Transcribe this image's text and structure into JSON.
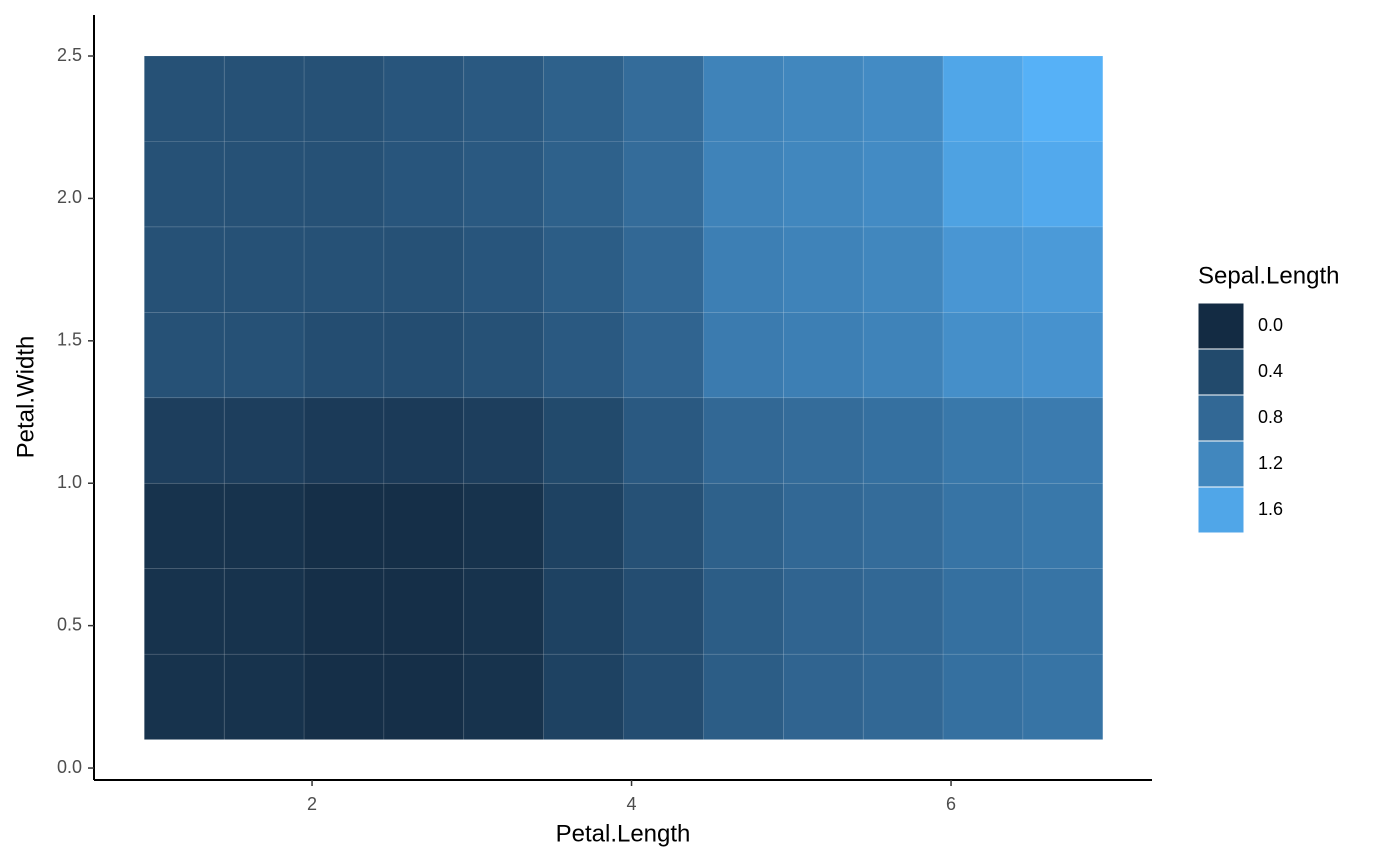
{
  "chart_data": {
    "type": "heatmap",
    "x_label": "Petal.Length",
    "y_label": "Petal.Width",
    "legend_title": "Sepal.Length",
    "x": [
      1.2,
      1.7,
      2.2,
      2.7,
      3.2,
      3.7,
      4.2,
      4.7,
      5.2,
      5.7,
      6.2,
      6.7
    ],
    "y": [
      0.25,
      0.55,
      0.85,
      1.15,
      1.45,
      1.75,
      2.05,
      2.35
    ],
    "z": [
      [
        0.1,
        0.1,
        0.05,
        0.05,
        0.1,
        0.3,
        0.45,
        0.65,
        0.75,
        0.8,
        0.9,
        0.95
      ],
      [
        0.1,
        0.1,
        0.05,
        0.05,
        0.1,
        0.3,
        0.45,
        0.65,
        0.75,
        0.8,
        0.9,
        0.95
      ],
      [
        0.1,
        0.1,
        0.05,
        0.05,
        0.1,
        0.3,
        0.5,
        0.7,
        0.8,
        0.85,
        0.95,
        1.0
      ],
      [
        0.25,
        0.25,
        0.2,
        0.2,
        0.25,
        0.4,
        0.6,
        0.8,
        0.85,
        0.9,
        1.0,
        1.05
      ],
      [
        0.5,
        0.5,
        0.45,
        0.45,
        0.5,
        0.6,
        0.75,
        1.05,
        1.1,
        1.15,
        1.3,
        1.35
      ],
      [
        0.5,
        0.5,
        0.5,
        0.5,
        0.55,
        0.65,
        0.8,
        1.1,
        1.15,
        1.2,
        1.4,
        1.45
      ],
      [
        0.5,
        0.5,
        0.5,
        0.55,
        0.6,
        0.7,
        0.85,
        1.15,
        1.2,
        1.25,
        1.55,
        1.65
      ],
      [
        0.5,
        0.5,
        0.5,
        0.55,
        0.6,
        0.7,
        0.85,
        1.15,
        1.2,
        1.25,
        1.6,
        1.75
      ]
    ],
    "xlim": [
      0.635,
      7.258
    ],
    "ylim": [
      -0.042,
      2.644
    ],
    "xticks": [
      2,
      4,
      6
    ],
    "yticks": [
      {
        "value": 0,
        "label": "0.0"
      },
      0.5,
      {
        "value": 1,
        "label": "1.0"
      },
      1.5,
      {
        "value": 2,
        "label": "2.0"
      },
      2.5
    ],
    "zlim": [
      0,
      1.75
    ],
    "zticks": [
      {
        "value": 0,
        "label": "0.0"
      },
      0.4,
      0.8,
      1.2,
      1.6
    ],
    "color_low": "#132B43",
    "color_high": "#56B1F7"
  }
}
